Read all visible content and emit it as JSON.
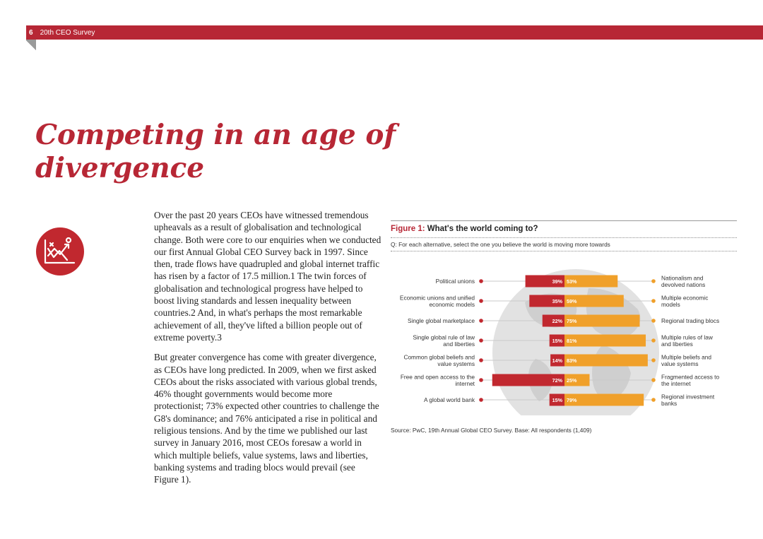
{
  "header": {
    "page_number": "6",
    "title": "20th CEO Survey"
  },
  "headline": "Competing in an age of divergence",
  "icon": "trend-chart-icon",
  "body": {
    "paragraphs": [
      "Over the past 20 years CEOs have witnessed tremendous upheavals as a result of globalisation and technological change. Both were core to our enquiries when we conducted our first Annual Global CEO Survey back in 1997. Since then, trade flows have quadrupled and global internet traffic has risen by a factor of 17.5 million.1 The twin forces of globalisation and technological progress have helped to boost living standards and lessen inequality between countries.2 And, in what's perhaps the most remarkable achievement of all, they've lifted a billion people out of extreme poverty.3",
      "But greater convergence has come with greater divergence, as CEOs have long predicted. In 2009, when we first asked CEOs about the risks associated with various global trends, 46% thought governments would become more protectionist; 73% expected other countries to challenge the G8's dominance; and 76% anticipated a rise in political and religious tensions. And by the time we published our last survey in January 2016, most CEOs foresaw a world in which multiple beliefs, value systems, laws and liberties, banking systems and trading blocs would prevail (see Figure 1)."
    ]
  },
  "figure": {
    "label": "Figure 1:",
    "title": "What's the world coming to?",
    "question": "Q: For each alternative, select the one you believe the world is moving more towards",
    "source": "Source: PwC, 19th Annual Global CEO Survey. Base: All respondents (1,409)"
  },
  "chart_data": {
    "type": "bar",
    "orientation": "horizontal-diverging",
    "unit": "%",
    "colors": {
      "left": "#c1282f",
      "right": "#f0a02a"
    },
    "rows": [
      {
        "left_label": "Political unions",
        "left": 39,
        "right": 53,
        "right_label": "Nationalism and devolved nations"
      },
      {
        "left_label": "Economic unions and unified economic models",
        "left": 35,
        "right": 59,
        "right_label": "Multiple economic models"
      },
      {
        "left_label": "Single global marketplace",
        "left": 22,
        "right": 75,
        "right_label": "Regional trading blocs"
      },
      {
        "left_label": "Single global rule of law and liberties",
        "left": 15,
        "right": 81,
        "right_label": "Multiple rules of law and liberties"
      },
      {
        "left_label": "Common global beliefs and value systems",
        "left": 14,
        "right": 83,
        "right_label": "Multiple beliefs and value systems"
      },
      {
        "left_label": "Free and open access to the internet",
        "left": 72,
        "right": 25,
        "right_label": "Fragmented access to the internet"
      },
      {
        "left_label": "A global world bank",
        "left": 15,
        "right": 79,
        "right_label": "Regional investment banks"
      }
    ]
  }
}
